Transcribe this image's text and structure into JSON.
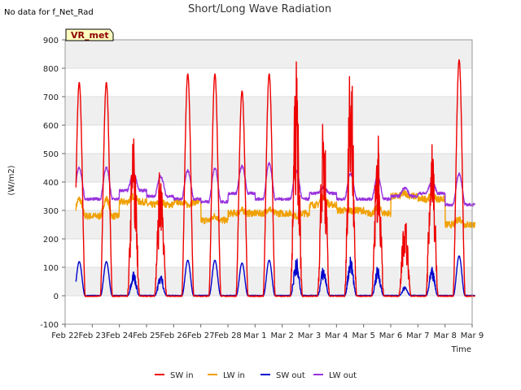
{
  "note": "No data for f_Net_Rad",
  "badge": "VR_met",
  "chart_data": {
    "type": "line",
    "title": "Short/Long Wave Radiation",
    "xlabel": "Time",
    "ylabel": "(W/m2)",
    "ylim": [
      -100,
      900
    ],
    "yticks": [
      -100,
      0,
      100,
      200,
      300,
      400,
      500,
      600,
      700,
      800,
      900
    ],
    "xlim": [
      "2025-02-22",
      "2025-03-09"
    ],
    "xtick_labels": [
      "Feb 22",
      "Feb 23",
      "Feb 24",
      "Feb 25",
      "Feb 26",
      "Feb 27",
      "Feb 28",
      "Mar 1",
      "Mar 2",
      "Mar 3",
      "Mar 4",
      "Mar 5",
      "Mar 6",
      "Mar 7",
      "Mar 8",
      "Mar 9"
    ],
    "grid": "horizontal bands",
    "legend_position": "bottom",
    "day_index_start": 1,
    "day_index_end": 16,
    "series": [
      {
        "name": "SW in",
        "color": "#ee0000",
        "peaks": [
          750,
          550,
          470,
          780,
          780,
          720,
          780,
          790,
          610,
          860,
          545,
          285,
          570,
          830
        ],
        "spiky": [
          false,
          true,
          true,
          false,
          false,
          false,
          false,
          true,
          true,
          true,
          true,
          true,
          true,
          false
        ]
      },
      {
        "name": "LW in",
        "color": "#f0a000",
        "night": [
          280,
          330,
          320,
          330,
          265,
          290,
          290,
          290,
          320,
          300,
          290,
          350,
          340,
          250
        ],
        "day": [
          340,
          350,
          330,
          320,
          280,
          300,
          305,
          280,
          350,
          300,
          310,
          360,
          350,
          270
        ]
      },
      {
        "name": "SW out",
        "color": "#0000cc",
        "peaks": [
          120,
          85,
          75,
          125,
          125,
          115,
          125,
          130,
          100,
          140,
          100,
          35,
          95,
          140
        ]
      },
      {
        "name": "LW out",
        "color": "#9933dd",
        "night": [
          340,
          370,
          350,
          340,
          330,
          360,
          340,
          340,
          360,
          340,
          340,
          350,
          360,
          320
        ],
        "day": [
          450,
          430,
          420,
          440,
          450,
          455,
          465,
          440,
          380,
          430,
          420,
          380,
          400,
          430
        ]
      }
    ]
  }
}
